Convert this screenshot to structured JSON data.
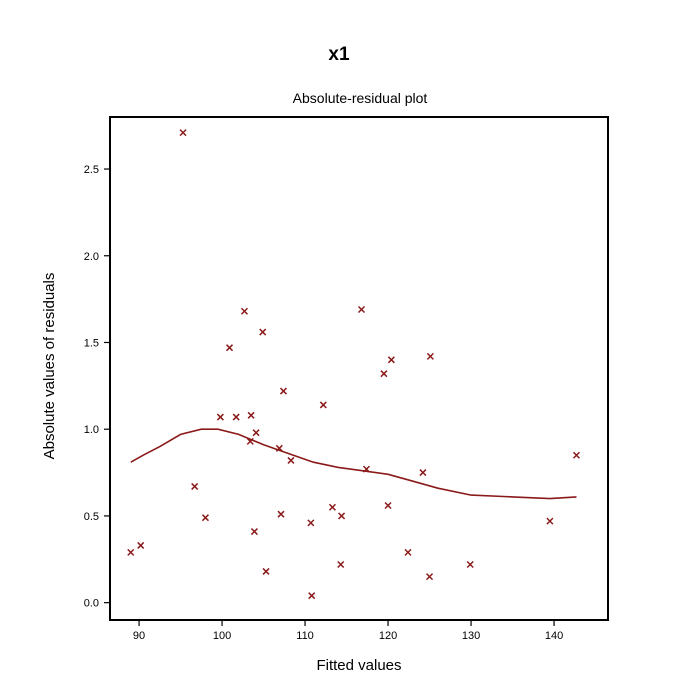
{
  "header": {
    "title": "x1",
    "subtitle": "Absolute-residual plot"
  },
  "chart_data": {
    "type": "scatter",
    "title": "Absolute-residual plot",
    "xlabel": "Fitted values",
    "ylabel": "Absolute values of residuals",
    "xlim": [
      86.5,
      146.5
    ],
    "ylim": [
      -0.1,
      2.8
    ],
    "xticks": [
      90,
      100,
      110,
      120,
      130,
      140
    ],
    "yticks": [
      0.0,
      0.5,
      1.0,
      1.5,
      2.0,
      2.5
    ],
    "xtick_labels": [
      "90",
      "100",
      "110",
      "120",
      "130",
      "140"
    ],
    "ytick_labels": [
      "0.0",
      "0.5",
      "1.0",
      "1.5",
      "2.0",
      "2.5"
    ],
    "grid": false,
    "marker": "x",
    "colors": {
      "points": "#8b1a1a",
      "line": "#8b1a1a",
      "frame": "#000000"
    },
    "points": [
      {
        "x": 95.3,
        "y": 2.71
      },
      {
        "x": 89.0,
        "y": 0.29
      },
      {
        "x": 90.2,
        "y": 0.33
      },
      {
        "x": 96.7,
        "y": 0.67
      },
      {
        "x": 98.0,
        "y": 0.49
      },
      {
        "x": 99.8,
        "y": 1.07
      },
      {
        "x": 100.9,
        "y": 1.47
      },
      {
        "x": 101.7,
        "y": 1.07
      },
      {
        "x": 102.7,
        "y": 1.68
      },
      {
        "x": 103.5,
        "y": 1.08
      },
      {
        "x": 103.4,
        "y": 0.93
      },
      {
        "x": 104.1,
        "y": 0.98
      },
      {
        "x": 103.9,
        "y": 0.41
      },
      {
        "x": 104.9,
        "y": 1.56
      },
      {
        "x": 105.3,
        "y": 0.18
      },
      {
        "x": 106.9,
        "y": 0.89
      },
      {
        "x": 107.1,
        "y": 0.51
      },
      {
        "x": 107.4,
        "y": 1.22
      },
      {
        "x": 108.3,
        "y": 0.82
      },
      {
        "x": 110.7,
        "y": 0.46
      },
      {
        "x": 110.8,
        "y": 0.04
      },
      {
        "x": 112.2,
        "y": 1.14
      },
      {
        "x": 113.3,
        "y": 0.55
      },
      {
        "x": 114.3,
        "y": 0.22
      },
      {
        "x": 114.4,
        "y": 0.5
      },
      {
        "x": 116.8,
        "y": 1.69
      },
      {
        "x": 117.4,
        "y": 0.77
      },
      {
        "x": 119.5,
        "y": 1.32
      },
      {
        "x": 120.0,
        "y": 0.56
      },
      {
        "x": 120.4,
        "y": 1.4
      },
      {
        "x": 122.4,
        "y": 0.29
      },
      {
        "x": 124.2,
        "y": 0.75
      },
      {
        "x": 125.1,
        "y": 1.42
      },
      {
        "x": 125.0,
        "y": 0.15
      },
      {
        "x": 129.9,
        "y": 0.22
      },
      {
        "x": 139.5,
        "y": 0.47
      },
      {
        "x": 142.7,
        "y": 0.85
      }
    ],
    "smooth_line": [
      {
        "x": 89.0,
        "y": 0.81
      },
      {
        "x": 90.5,
        "y": 0.85
      },
      {
        "x": 92.5,
        "y": 0.9
      },
      {
        "x": 95.0,
        "y": 0.97
      },
      {
        "x": 97.5,
        "y": 1.0
      },
      {
        "x": 99.5,
        "y": 1.0
      },
      {
        "x": 102.0,
        "y": 0.97
      },
      {
        "x": 105.0,
        "y": 0.91
      },
      {
        "x": 108.0,
        "y": 0.86
      },
      {
        "x": 111.0,
        "y": 0.81
      },
      {
        "x": 114.0,
        "y": 0.78
      },
      {
        "x": 117.0,
        "y": 0.76
      },
      {
        "x": 120.0,
        "y": 0.74
      },
      {
        "x": 123.0,
        "y": 0.7
      },
      {
        "x": 126.0,
        "y": 0.66
      },
      {
        "x": 130.0,
        "y": 0.62
      },
      {
        "x": 135.0,
        "y": 0.61
      },
      {
        "x": 139.5,
        "y": 0.6
      },
      {
        "x": 142.7,
        "y": 0.61
      }
    ]
  }
}
